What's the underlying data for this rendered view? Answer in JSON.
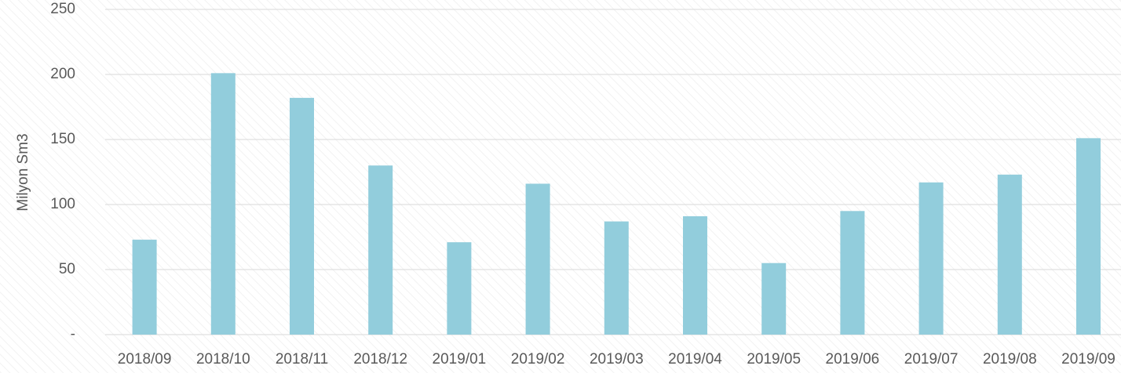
{
  "chart_data": {
    "type": "bar",
    "y_axis_label": "Milyon Sm3",
    "categories": [
      "2018/09",
      "2018/10",
      "2018/11",
      "2018/12",
      "2019/01",
      "2019/02",
      "2019/03",
      "2019/04",
      "2019/05",
      "2019/06",
      "2019/07",
      "2019/08",
      "2019/09"
    ],
    "values": [
      73,
      201,
      182,
      130,
      71,
      116,
      87,
      91,
      55,
      95,
      117,
      123,
      151
    ],
    "color": "#92cddc",
    "ylim": [
      0,
      250
    ],
    "yticks": [
      {
        "value": 0,
        "label": "-"
      },
      50,
      100,
      150,
      200,
      250
    ],
    "grid": true
  }
}
